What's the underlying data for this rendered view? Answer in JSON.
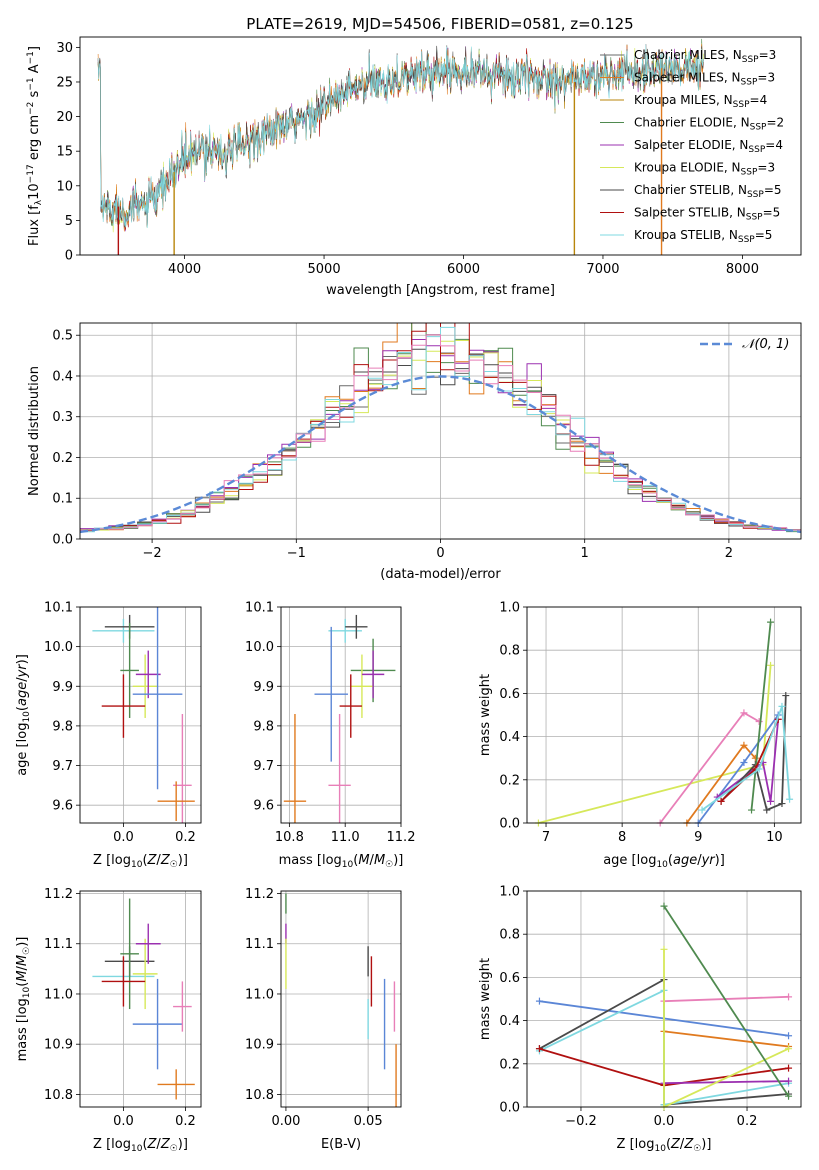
{
  "figure": {
    "title": "PLATE=2619, MJD=54506, FIBERID=0581, z=0.125"
  },
  "colors": {
    "chabrier_miles": "#6a6a6a",
    "salpeter_miles": "#e07a1f",
    "kroupa_miles": "#b8860b",
    "chabrier_elodie": "#4f8a4f",
    "salpeter_elodie": "#9b30b0",
    "kroupa_elodie": "#d6e85a",
    "chabrier_stelib": "#4a4a4a",
    "salpeter_stelib": "#b01010",
    "kroupa_stelib": "#7fd8e0",
    "blue": "#5b86d6",
    "pink": "#e87fb8",
    "gauss": "#5b8ad6",
    "grid": "#b0b0b0"
  },
  "chart_data": [
    {
      "id": "spectrum",
      "type": "line",
      "xlabel": "wavelength [Angstrom, rest frame]",
      "ylabel": "Flux [f_λ10^-17 erg cm^-2 s^-1 A^-1]",
      "xlim": [
        3250,
        8420
      ],
      "ylim": [
        0,
        31.5
      ],
      "xticks": [
        4000,
        5000,
        6000,
        7000,
        8000
      ],
      "yticks": [
        0,
        5,
        10,
        15,
        20,
        25,
        30
      ],
      "grid": false,
      "legend_position": "top-right",
      "legend": [
        "Chabrier MILES, N_SSP=3",
        "Salpeter MILES, N_SSP=3",
        "Kroupa MILES, N_SSP=4",
        "Chabrier ELODIE, N_SSP=2",
        "Salpeter ELODIE, N_SSP=4",
        "Kroupa ELODIE, N_SSP=3",
        "Chabrier STELIB, N_SSP=5",
        "Salpeter STELIB, N_SSP=5",
        "Kroupa STELIB, N_SSP=5"
      ],
      "continuum": [
        [
          3400,
          7.0
        ],
        [
          3600,
          6.5
        ],
        [
          3800,
          8.0
        ],
        [
          3920,
          12.0
        ],
        [
          4000,
          14.0
        ],
        [
          4200,
          15.5
        ],
        [
          4300,
          14.5
        ],
        [
          4500,
          17.0
        ],
        [
          4800,
          19.0
        ],
        [
          5000,
          21.5
        ],
        [
          5200,
          24.0
        ],
        [
          5500,
          25.5
        ],
        [
          5800,
          26.5
        ],
        [
          6000,
          27.0
        ],
        [
          6200,
          26.0
        ],
        [
          6500,
          25.5
        ],
        [
          6800,
          25.5
        ],
        [
          7000,
          25.8
        ],
        [
          7200,
          26.5
        ],
        [
          7500,
          27.0
        ],
        [
          7700,
          27.0
        ]
      ]
    },
    {
      "id": "residuals",
      "type": "histogram",
      "xlabel": "(data-model)/error",
      "ylabel": "Normed distribution",
      "xlim": [
        -2.5,
        2.5
      ],
      "ylim": [
        0,
        0.53
      ],
      "xticks": [
        -2,
        -1,
        0,
        1,
        2
      ],
      "xticklabels": [
        "−2",
        "−1",
        "0",
        "1",
        "2"
      ],
      "yticks": [
        0.0,
        0.1,
        0.2,
        0.3,
        0.4,
        0.5
      ],
      "yticklabels": [
        "0.0",
        "0.1",
        "0.2",
        "0.3",
        "0.4",
        "0.5"
      ],
      "grid": true,
      "legend_position": "top-right",
      "legend": [
        "𝒩(0, 1)"
      ],
      "bin_width": 0.1,
      "bin_start": -2.5
    },
    {
      "id": "age-vs-Z",
      "type": "errorbar",
      "xlabel": "Z [log10(Z/Z☉)]",
      "ylabel": "age [log10(age/yr)]",
      "xlim": [
        -0.14,
        0.25
      ],
      "ylim": [
        9.555,
        10.1
      ],
      "xticks": [
        0.0,
        0.2
      ],
      "xticklabels": [
        "0.0",
        "0.2"
      ],
      "yticks": [
        9.6,
        9.7,
        9.8,
        9.9,
        10.0,
        10.1
      ],
      "yticklabels": [
        "9.6",
        "9.7",
        "9.8",
        "9.9",
        "10.0",
        "10.1"
      ],
      "points": [
        {
          "series": "kroupa_stelib",
          "x": 0.0,
          "xerr": 0.1,
          "y": 10.04,
          "yerr": 0.03
        },
        {
          "series": "chabrier_stelib",
          "x": 0.02,
          "xerr": 0.08,
          "y": 10.05,
          "yerr": 0.03
        },
        {
          "series": "chabrier_elodie",
          "x": 0.02,
          "xerr": 0.03,
          "y": 9.94,
          "yerr": 0.12
        },
        {
          "series": "kroupa_elodie",
          "x": 0.07,
          "xerr": 0.04,
          "y": 9.9,
          "yerr": 0.08
        },
        {
          "series": "salpeter_elodie",
          "x": 0.08,
          "xerr": 0.04,
          "y": 9.93,
          "yerr": 0.06
        },
        {
          "series": "blue",
          "x": 0.11,
          "xerr": 0.08,
          "y": 9.88,
          "yerr": 0.24
        },
        {
          "series": "salpeter_stelib",
          "x": 0.0,
          "xerr": 0.07,
          "y": 9.85,
          "yerr": 0.08
        },
        {
          "series": "pink",
          "x": 0.19,
          "xerr": 0.03,
          "y": 9.65,
          "yerr": 0.18
        },
        {
          "series": "salpeter_miles",
          "x": 0.17,
          "xerr": 0.06,
          "y": 9.61,
          "yerr": 0.05
        }
      ]
    },
    {
      "id": "age-vs-mass",
      "type": "errorbar",
      "xlabel": "mass [log10(M/M☉)]",
      "ylabel": "",
      "xlim": [
        10.77,
        11.2
      ],
      "ylim": [
        9.555,
        10.1
      ],
      "xticks": [
        10.8,
        11.0,
        11.2
      ],
      "xticklabels": [
        "10.8",
        "11.0",
        "11.2"
      ],
      "yticks": [
        9.6,
        9.7,
        9.8,
        9.9,
        10.0,
        10.1
      ],
      "yticklabels": [
        "9.6",
        "9.7",
        "9.8",
        "9.9",
        "10.0",
        "10.1"
      ],
      "points": [
        {
          "series": "kroupa_stelib",
          "x": 11.0,
          "xerr": 0.06,
          "y": 10.04,
          "yerr": 0.03
        },
        {
          "series": "chabrier_stelib",
          "x": 11.04,
          "xerr": 0.04,
          "y": 10.05,
          "yerr": 0.03
        },
        {
          "series": "chabrier_elodie",
          "x": 11.1,
          "xerr": 0.08,
          "y": 9.94,
          "yerr": 0.08
        },
        {
          "series": "kroupa_elodie",
          "x": 11.06,
          "xerr": 0.04,
          "y": 9.9,
          "yerr": 0.08
        },
        {
          "series": "salpeter_elodie",
          "x": 11.1,
          "xerr": 0.04,
          "y": 9.93,
          "yerr": 0.06
        },
        {
          "series": "blue",
          "x": 10.95,
          "xerr": 0.06,
          "y": 9.88,
          "yerr": 0.17
        },
        {
          "series": "salpeter_stelib",
          "x": 11.02,
          "xerr": 0.04,
          "y": 9.85,
          "yerr": 0.08
        },
        {
          "series": "pink",
          "x": 10.98,
          "xerr": 0.04,
          "y": 9.65,
          "yerr": 0.18
        },
        {
          "series": "salpeter_miles",
          "x": 10.82,
          "xerr": 0.04,
          "y": 9.61,
          "yerr": 0.22
        }
      ]
    },
    {
      "id": "weight-vs-age",
      "type": "line",
      "xlabel": "age [log10(age/yr)]",
      "ylabel": "mass weight",
      "xlim": [
        6.75,
        10.35
      ],
      "ylim": [
        0,
        1.0
      ],
      "xticks": [
        7,
        8,
        9,
        10
      ],
      "xticklabels": [
        "7",
        "8",
        "9",
        "10"
      ],
      "yticks": [
        0.0,
        0.2,
        0.4,
        0.6,
        0.8,
        1.0
      ],
      "yticklabels": [
        "0.0",
        "0.2",
        "0.4",
        "0.6",
        "0.8",
        "1.0"
      ],
      "grid": true,
      "series": [
        {
          "series": "kroupa_elodie",
          "x": [
            6.9,
            9.85,
            9.95
          ],
          "y": [
            0.0,
            0.27,
            0.73
          ]
        },
        {
          "series": "pink",
          "x": [
            8.5,
            9.6,
            9.8
          ],
          "y": [
            0.0,
            0.51,
            0.47
          ]
        },
        {
          "series": "salpeter_miles",
          "x": [
            8.85,
            9.6,
            9.75
          ],
          "y": [
            0.0,
            0.36,
            0.3
          ]
        },
        {
          "series": "blue",
          "x": [
            9.0,
            9.6,
            10.05
          ],
          "y": [
            0.0,
            0.28,
            0.5
          ]
        },
        {
          "series": "salpeter_elodie",
          "x": [
            9.25,
            9.85,
            9.95,
            10.05
          ],
          "y": [
            0.12,
            0.28,
            0.1,
            0.48
          ]
        },
        {
          "series": "chabrier_stelib",
          "x": [
            9.3,
            9.75,
            9.9,
            10.1,
            10.15
          ],
          "y": [
            0.1,
            0.27,
            0.06,
            0.09,
            0.59
          ]
        },
        {
          "series": "chabrier_elodie",
          "x": [
            9.7,
            9.95
          ],
          "y": [
            0.06,
            0.93
          ]
        },
        {
          "series": "salpeter_stelib",
          "x": [
            9.3,
            9.75,
            10.05
          ],
          "y": [
            0.1,
            0.25,
            0.48
          ]
        },
        {
          "series": "kroupa_stelib",
          "x": [
            9.05,
            9.8,
            10.1,
            10.2
          ],
          "y": [
            0.06,
            0.25,
            0.54,
            0.11
          ]
        }
      ]
    },
    {
      "id": "mass-vs-Z",
      "type": "errorbar",
      "xlabel": "Z [log10(Z/Z☉)]",
      "ylabel": "mass [log10(M/M☉)]",
      "xlim": [
        -0.14,
        0.25
      ],
      "ylim": [
        10.775,
        11.205
      ],
      "xticks": [
        0.0,
        0.2
      ],
      "xticklabels": [
        "0.0",
        "0.2"
      ],
      "yticks": [
        10.8,
        10.9,
        11.0,
        11.1,
        11.2
      ],
      "yticklabels": [
        "10.8",
        "10.9",
        "11.0",
        "11.1",
        "11.2"
      ],
      "points": [
        {
          "series": "kroupa_stelib",
          "x": 0.0,
          "xerr": 0.1,
          "y": 11.035,
          "yerr": 0.03
        },
        {
          "series": "chabrier_stelib",
          "x": 0.02,
          "xerr": 0.08,
          "y": 11.065,
          "yerr": 0.03
        },
        {
          "series": "chabrier_elodie",
          "x": 0.02,
          "xerr": 0.03,
          "y": 11.08,
          "yerr": 0.11
        },
        {
          "series": "kroupa_elodie",
          "x": 0.07,
          "xerr": 0.04,
          "y": 11.04,
          "yerr": 0.07
        },
        {
          "series": "salpeter_elodie",
          "x": 0.08,
          "xerr": 0.04,
          "y": 11.1,
          "yerr": 0.04
        },
        {
          "series": "blue",
          "x": 0.11,
          "xerr": 0.08,
          "y": 10.94,
          "yerr": 0.09
        },
        {
          "series": "salpeter_stelib",
          "x": 0.0,
          "xerr": 0.07,
          "y": 11.025,
          "yerr": 0.05
        },
        {
          "series": "pink",
          "x": 0.19,
          "xerr": 0.03,
          "y": 10.975,
          "yerr": 0.05
        },
        {
          "series": "salpeter_miles",
          "x": 0.17,
          "xerr": 0.06,
          "y": 10.82,
          "yerr": 0.03
        }
      ]
    },
    {
      "id": "mass-vs-EBV",
      "type": "errorbar",
      "xlabel": "E(B-V)",
      "ylabel": "",
      "xlim": [
        -0.003,
        0.07
      ],
      "ylim": [
        10.775,
        11.205
      ],
      "xticks": [
        0.0,
        0.05
      ],
      "xticklabels": [
        "0.00",
        "0.05"
      ],
      "yticks": [
        10.8,
        10.9,
        11.0,
        11.1,
        11.2
      ],
      "yticklabels": [
        "10.8",
        "10.9",
        "11.0",
        "11.1",
        "11.2"
      ],
      "points": [
        {
          "series": "chabrier_elodie",
          "x": 0.0,
          "xerr": 0,
          "y": 11.18,
          "yerr": 0.02
        },
        {
          "series": "salpeter_elodie",
          "x": 0.0,
          "xerr": 0,
          "y": 11.12,
          "yerr": 0.02
        },
        {
          "series": "kroupa_elodie",
          "x": 0.0,
          "xerr": 0,
          "y": 11.06,
          "yerr": 0.05
        },
        {
          "series": "chabrier_stelib",
          "x": 0.05,
          "xerr": 0,
          "y": 11.065,
          "yerr": 0.03
        },
        {
          "series": "kroupa_stelib",
          "x": 0.05,
          "xerr": 0,
          "y": 10.95,
          "yerr": 0.04
        },
        {
          "series": "salpeter_stelib",
          "x": 0.052,
          "xerr": 0,
          "y": 11.025,
          "yerr": 0.05
        },
        {
          "series": "blue",
          "x": 0.06,
          "xerr": 0,
          "y": 10.94,
          "yerr": 0.09
        },
        {
          "series": "pink",
          "x": 0.066,
          "xerr": 0,
          "y": 10.975,
          "yerr": 0.05
        },
        {
          "series": "salpeter_miles",
          "x": 0.067,
          "xerr": 0,
          "y": 10.82,
          "yerr": 0.08
        }
      ]
    },
    {
      "id": "weight-vs-Z",
      "type": "line",
      "xlabel": "Z [log10(Z/Z☉)]",
      "ylabel": "mass weight",
      "xlim": [
        -0.33,
        0.33
      ],
      "ylim": [
        0,
        1.0
      ],
      "xticks": [
        -0.2,
        0.0,
        0.2
      ],
      "xticklabels": [
        "−0.2",
        "0.0",
        "0.2"
      ],
      "yticks": [
        0.0,
        0.2,
        0.4,
        0.6,
        0.8,
        1.0
      ],
      "yticklabels": [
        "0.0",
        "0.2",
        "0.4",
        "0.6",
        "0.8",
        "1.0"
      ],
      "grid": true,
      "series": [
        {
          "series": "blue",
          "x": [
            -0.3,
            0.3
          ],
          "y": [
            0.49,
            0.33
          ]
        },
        {
          "series": "chabrier_stelib",
          "x": [
            -0.3,
            0.0,
            0.0,
            0.3
          ],
          "y": [
            0.27,
            0.59,
            0.01,
            0.06
          ]
        },
        {
          "series": "kroupa_stelib",
          "x": [
            -0.3,
            0.0,
            0.0,
            0.3
          ],
          "y": [
            0.26,
            0.54,
            0.01,
            0.11
          ]
        },
        {
          "series": "salpeter_stelib",
          "x": [
            -0.3,
            0.0,
            0.3
          ],
          "y": [
            0.27,
            0.1,
            0.18
          ]
        },
        {
          "series": "pink",
          "x": [
            0.0,
            0.3
          ],
          "y": [
            0.49,
            0.51
          ]
        },
        {
          "series": "salpeter_miles",
          "x": [
            0.0,
            0.3
          ],
          "y": [
            0.35,
            0.28
          ]
        },
        {
          "series": "salpeter_elodie",
          "x": [
            0.0,
            0.3
          ],
          "y": [
            0.11,
            0.12
          ]
        },
        {
          "series": "kroupa_elodie",
          "x": [
            0.0,
            0.0,
            0.3
          ],
          "y": [
            0.73,
            0.0,
            0.27
          ]
        },
        {
          "series": "chabrier_elodie",
          "x": [
            0.0,
            0.3
          ],
          "y": [
            0.93,
            0.05
          ]
        }
      ]
    }
  ]
}
